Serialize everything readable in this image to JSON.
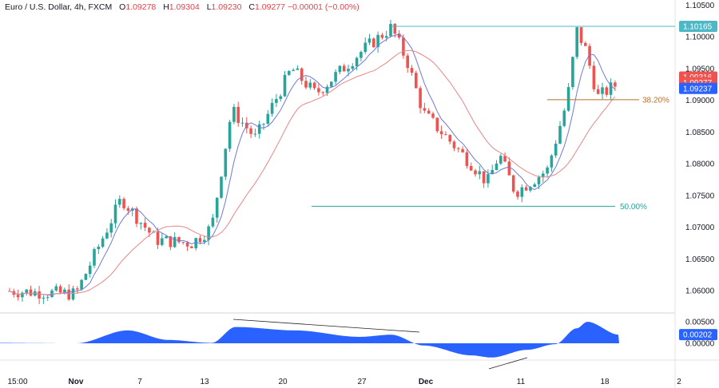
{
  "header": {
    "symbol": "Euro / U.S. Dollar, 4h, FXCM",
    "open_label": "O",
    "open": "1.09278",
    "high_label": "H",
    "high": "1.09304",
    "low_label": "L",
    "low": "1.09230",
    "close_label": "C",
    "close": "1.09277",
    "change": "−0.00001 (−0.00%)"
  },
  "colors": {
    "up": "#26a69a",
    "down": "#ef5350",
    "fast_ma": "#6f7ad8",
    "slow_ma": "#e8868a",
    "oscillator": "#2962ff",
    "level_line": "#4fb8c6",
    "fib_382": "#b8722c",
    "fib_50": "#26a69a",
    "trendline": "#222222"
  },
  "price_axis": {
    "ticks": [
      "1.10500",
      "1.10000",
      "1.09500",
      "1.09000",
      "1.08500",
      "1.08000",
      "1.07500",
      "1.07000",
      "1.06500",
      "1.06000"
    ],
    "labels": [
      {
        "text": "1.10165",
        "value": 1.10165,
        "bg": "#4fb8c6"
      },
      {
        "text": "1.09316",
        "value": 1.09316,
        "bg": "#ef5350"
      },
      {
        "text": "1.09277",
        "value": 1.09277,
        "bg": "#ef5350"
      },
      {
        "text": "1.09237",
        "value": 1.09237,
        "bg": "#2962ff"
      }
    ]
  },
  "osc_axis": {
    "ticks": [
      "0.00500",
      "0.00000"
    ],
    "label": {
      "text": "0.00202",
      "value": 0.00202,
      "bg": "#2962ff"
    }
  },
  "time_axis": [
    "15:00",
    "Nov",
    "7",
    "13",
    "20",
    "27",
    "Dec",
    "11",
    "18",
    "2"
  ],
  "annotations": {
    "fib_382": "38.20%",
    "fib_50": "50.00%"
  },
  "chart_data": [
    {
      "type": "candlestick",
      "title": "Euro / U.S. Dollar, 4h, FXCM",
      "ylim": [
        1.0565,
        1.1058
      ],
      "horizontal_levels": [
        {
          "value": 1.10165,
          "label": "1.10165"
        },
        {
          "value": 1.0901,
          "label": "38.20%"
        },
        {
          "value": 1.0733,
          "label": "50.00%"
        }
      ],
      "path_points": [
        {
          "x": "15:00",
          "y": 1.06
        },
        {
          "x": "Nov",
          "y": 1.0595
        },
        {
          "x": "7",
          "y": 1.0745
        },
        {
          "x": "9",
          "y": 1.068
        },
        {
          "x": "12",
          "y": 1.0675
        },
        {
          "x": "13",
          "y": 1.07
        },
        {
          "x": "15",
          "y": 1.0885
        },
        {
          "x": "17",
          "y": 1.084
        },
        {
          "x": "20",
          "y": 1.095
        },
        {
          "x": "22",
          "y": 1.091
        },
        {
          "x": "27",
          "y": 1.098
        },
        {
          "x": "29",
          "y": 1.1015
        },
        {
          "x": "30",
          "y": 1.096
        },
        {
          "x": "Dec",
          "y": 1.088
        },
        {
          "x": "6",
          "y": 1.08
        },
        {
          "x": "8",
          "y": 1.077
        },
        {
          "x": "9",
          "y": 1.0815
        },
        {
          "x": "11",
          "y": 1.0755
        },
        {
          "x": "13",
          "y": 1.079
        },
        {
          "x": "14",
          "y": 1.09
        },
        {
          "x": "15",
          "y": 1.101
        },
        {
          "x": "16",
          "y": 1.098
        },
        {
          "x": "17",
          "y": 1.0905
        },
        {
          "x": "18",
          "y": 1.0928
        }
      ]
    },
    {
      "type": "area",
      "name": "oscillator",
      "ylim": [
        -0.0037,
        0.0065
      ],
      "points": [
        {
          "x": "15:00",
          "y": 0.0001
        },
        {
          "x": "Nov",
          "y": 0.0
        },
        {
          "x": "7",
          "y": 0.003
        },
        {
          "x": "9",
          "y": 0.0008
        },
        {
          "x": "13",
          "y": 0.0001
        },
        {
          "x": "15",
          "y": 0.0038
        },
        {
          "x": "20",
          "y": 0.003
        },
        {
          "x": "27",
          "y": 0.0015
        },
        {
          "x": "29",
          "y": 0.002
        },
        {
          "x": "Dec",
          "y": -0.0005
        },
        {
          "x": "6",
          "y": -0.0028
        },
        {
          "x": "8",
          "y": -0.0033
        },
        {
          "x": "11",
          "y": -0.0015
        },
        {
          "x": "13",
          "y": -0.0002
        },
        {
          "x": "15",
          "y": 0.0035
        },
        {
          "x": "16",
          "y": 0.005
        },
        {
          "x": "18",
          "y": 0.002
        }
      ]
    }
  ]
}
